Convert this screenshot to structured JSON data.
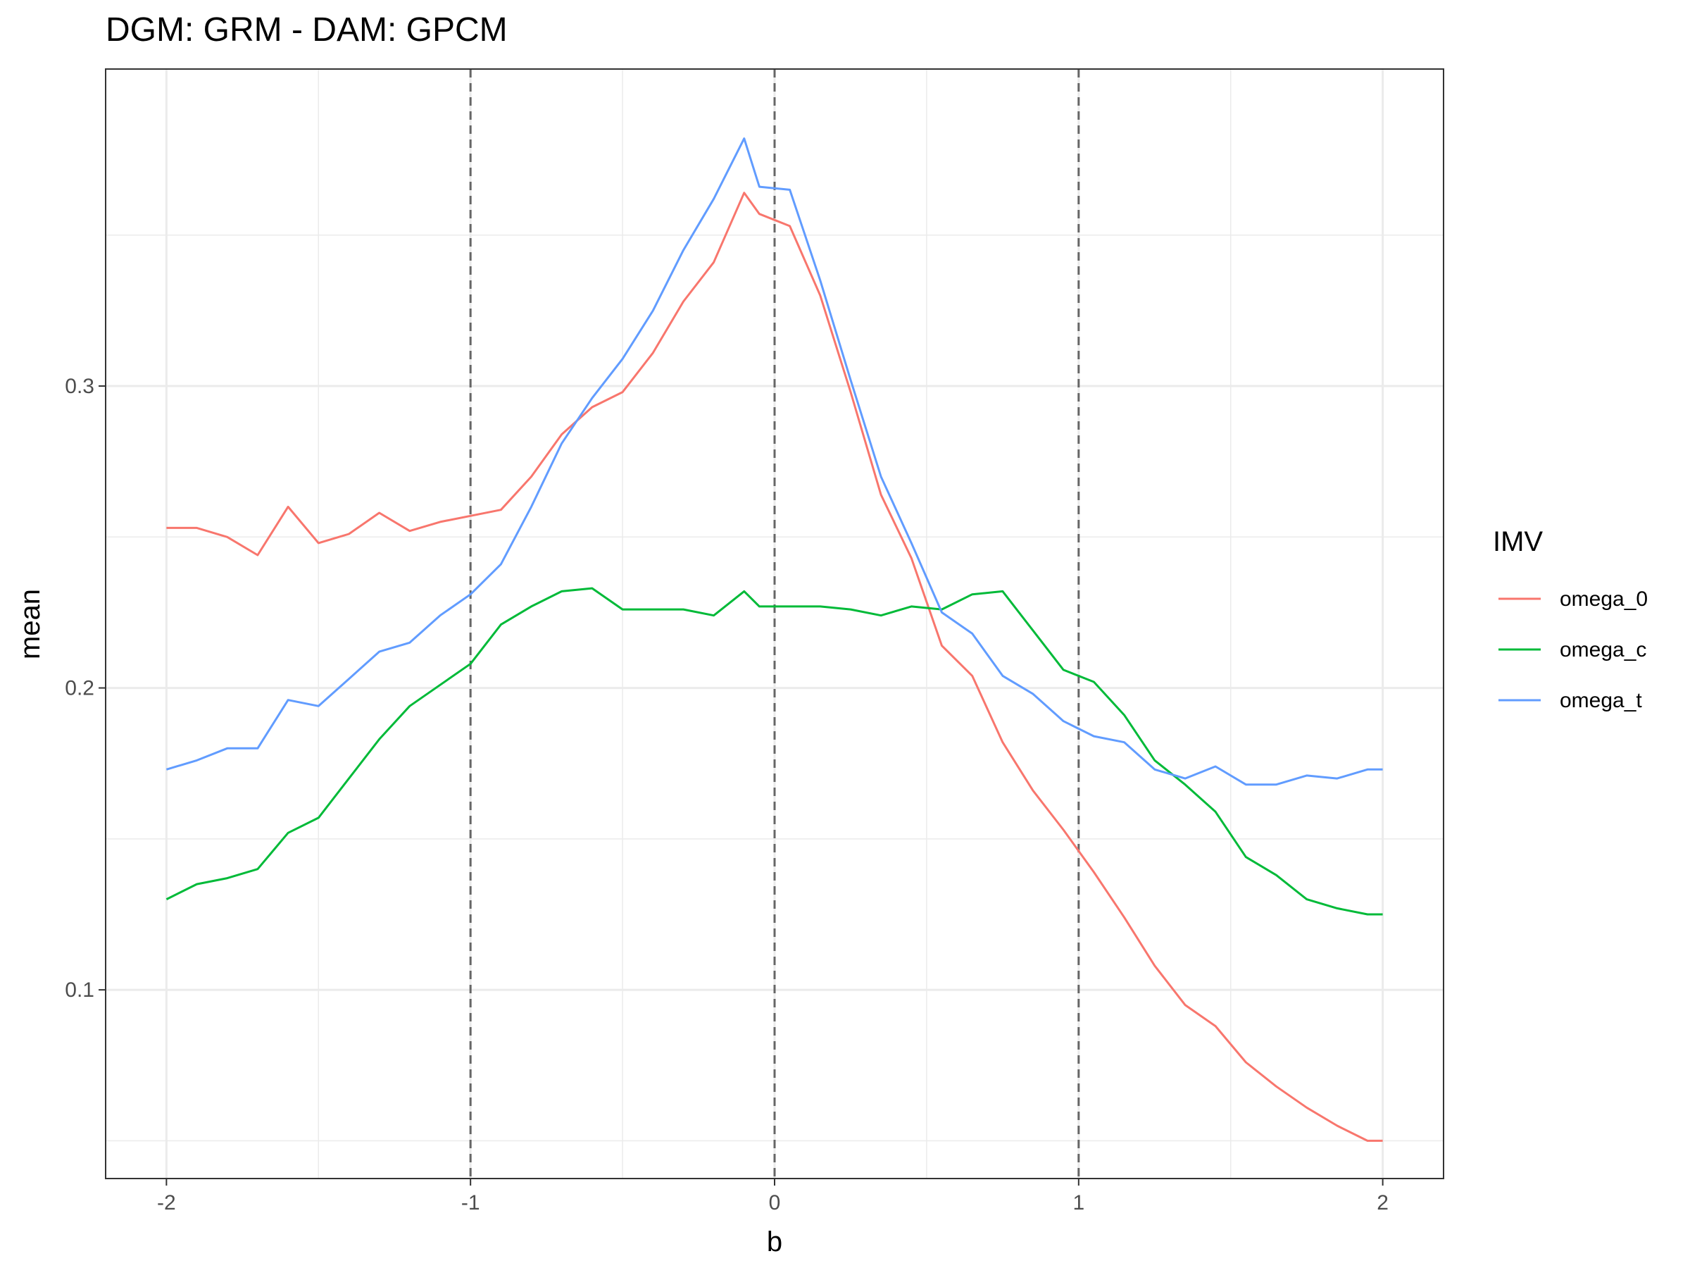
{
  "chart_data": {
    "type": "line",
    "title": "DGM: GRM - DAM: GPCM",
    "xlabel": "b",
    "ylabel": "mean",
    "xlim": [
      -2.2,
      2.2
    ],
    "ylim": [
      0.0375,
      0.405
    ],
    "xticks": [
      -2,
      -1,
      0,
      1,
      2
    ],
    "xtick_labels": [
      "-2",
      "-1",
      "0",
      "1",
      "2"
    ],
    "yticks": [
      0.1,
      0.2,
      0.3
    ],
    "ytick_labels": [
      "0.1",
      "0.2",
      "0.3"
    ],
    "vlines": [
      -1,
      0,
      1
    ],
    "grid": true,
    "legend": {
      "title": "IMV",
      "position": "right"
    },
    "x": [
      -2.0,
      -1.9,
      -1.8,
      -1.7,
      -1.6,
      -1.5,
      -1.4,
      -1.3,
      -1.2,
      -1.1,
      -1.0,
      -0.9,
      -0.8,
      -0.7,
      -0.6,
      -0.5,
      -0.4,
      -0.3,
      -0.2,
      -0.1,
      -0.05,
      0.05,
      0.15,
      0.25,
      0.35,
      0.45,
      0.55,
      0.65,
      0.75,
      0.85,
      0.95,
      1.05,
      1.15,
      1.25,
      1.35,
      1.45,
      1.55,
      1.65,
      1.75,
      1.85,
      1.95,
      2.0
    ],
    "series": [
      {
        "name": "omega_0",
        "color": "#F8766D",
        "values": [
          0.253,
          0.253,
          0.25,
          0.244,
          0.26,
          0.248,
          0.251,
          0.258,
          0.252,
          0.255,
          0.257,
          0.259,
          0.27,
          0.284,
          0.293,
          0.298,
          0.311,
          0.328,
          0.341,
          0.364,
          0.357,
          0.353,
          0.33,
          0.298,
          0.264,
          0.243,
          0.214,
          0.204,
          0.182,
          0.166,
          0.153,
          0.139,
          0.124,
          0.108,
          0.095,
          0.088,
          0.076,
          0.068,
          0.061,
          0.055,
          0.05,
          0.05
        ]
      },
      {
        "name": "omega_c",
        "color": "#00BA38",
        "values": [
          0.13,
          0.135,
          0.137,
          0.14,
          0.152,
          0.157,
          0.17,
          0.183,
          0.194,
          0.201,
          0.208,
          0.221,
          0.227,
          0.232,
          0.233,
          0.226,
          0.226,
          0.226,
          0.224,
          0.232,
          0.227,
          0.227,
          0.227,
          0.226,
          0.224,
          0.227,
          0.226,
          0.231,
          0.232,
          0.219,
          0.206,
          0.202,
          0.191,
          0.176,
          0.168,
          0.159,
          0.144,
          0.138,
          0.13,
          0.127,
          0.125,
          0.125
        ]
      },
      {
        "name": "omega_t",
        "color": "#619CFF",
        "values": [
          0.173,
          0.176,
          0.18,
          0.18,
          0.196,
          0.194,
          0.203,
          0.212,
          0.215,
          0.224,
          0.231,
          0.241,
          0.26,
          0.281,
          0.296,
          0.309,
          0.325,
          0.345,
          0.362,
          0.382,
          0.366,
          0.365,
          0.335,
          0.302,
          0.27,
          0.248,
          0.225,
          0.218,
          0.204,
          0.198,
          0.189,
          0.184,
          0.182,
          0.173,
          0.17,
          0.174,
          0.168,
          0.168,
          0.171,
          0.17,
          0.173,
          0.173
        ]
      }
    ]
  }
}
